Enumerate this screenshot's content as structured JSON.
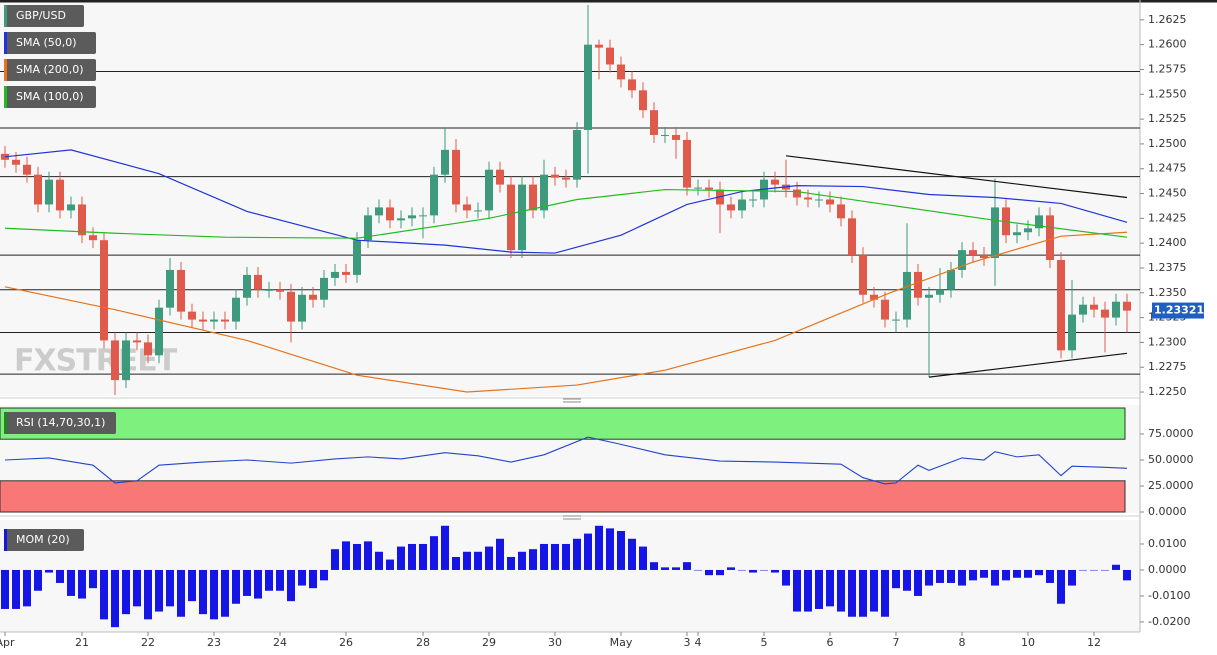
{
  "chart_data": [
    {
      "type": "candlestick",
      "name": "GBP/USD",
      "watermark": "FXSTREET",
      "up_color": "#3d9a7c",
      "down_color": "#e05a4b",
      "open": [
        1.249,
        1.2484,
        1.2479,
        1.2469,
        1.2439,
        1.2464,
        1.2433,
        1.2439,
        1.2408,
        1.2403,
        1.2302,
        1.2262,
        1.2302,
        1.23,
        1.2287,
        1.2335,
        1.2373,
        1.2331,
        1.2323,
        1.2321,
        1.2323,
        1.2321,
        1.2345,
        1.2368,
        1.2353,
        1.2353,
        1.2351,
        1.2321,
        1.2348,
        1.2343,
        1.2365,
        1.2371,
        1.2368,
        1.2403,
        1.2428,
        1.2436,
        1.2423,
        1.2425,
        1.2428,
        1.2428,
        1.2469,
        1.2494,
        1.2439,
        1.2433,
        1.2433,
        1.2474,
        1.2459,
        1.2393,
        1.2459,
        1.2433,
        1.2469,
        1.2466,
        1.2464,
        1.2514,
        1.26,
        1.2597,
        1.258,
        1.2565,
        1.2554,
        1.2534,
        1.2509,
        1.2509,
        1.2504,
        1.2456,
        1.2456,
        1.2454,
        1.2439,
        1.2433,
        1.2444,
        1.2444,
        1.2464,
        1.2459,
        1.2454,
        1.2446,
        1.2444,
        1.2444,
        1.2439,
        1.2425,
        1.2388,
        1.2348,
        1.2343,
        1.2323,
        1.2323,
        1.2371,
        1.2345,
        1.2348,
        1.2353,
        1.2373,
        1.2393,
        1.2388,
        1.2385,
        1.2436,
        1.2408,
        1.2411,
        1.2415,
        1.2428,
        1.2383,
        1.2292,
        1.2328,
        1.2338,
        1.2333,
        1.2325,
        1.2341
      ],
      "high": [
        1.2498,
        1.2492,
        1.2487,
        1.2477,
        1.2472,
        1.2472,
        1.2447,
        1.2447,
        1.2416,
        1.2411,
        1.231,
        1.231,
        1.231,
        1.2308,
        1.2343,
        1.2385,
        1.2381,
        1.2339,
        1.2331,
        1.2331,
        1.2331,
        1.2353,
        1.2376,
        1.2376,
        1.2361,
        1.2361,
        1.2359,
        1.2356,
        1.2356,
        1.2373,
        1.2379,
        1.2379,
        1.2411,
        1.2436,
        1.2444,
        1.2444,
        1.2433,
        1.2436,
        1.2436,
        1.2477,
        1.2517,
        1.2505,
        1.2447,
        1.2441,
        1.2482,
        1.2482,
        1.2467,
        1.2467,
        1.2467,
        1.2484,
        1.2477,
        1.2474,
        1.2522,
        1.264,
        1.2605,
        1.2605,
        1.2588,
        1.2573,
        1.2562,
        1.2542,
        1.2517,
        1.2517,
        1.2512,
        1.2464,
        1.2464,
        1.2462,
        1.2447,
        1.2452,
        1.2452,
        1.2472,
        1.2472,
        1.2484,
        1.2462,
        1.2454,
        1.2452,
        1.2452,
        1.2447,
        1.2433,
        1.2396,
        1.2356,
        1.2351,
        1.2331,
        1.242,
        1.2379,
        1.2356,
        1.2375,
        1.2381,
        1.2401,
        1.2401,
        1.2396,
        1.2465,
        1.2444,
        1.2419,
        1.2423,
        1.2436,
        1.2436,
        1.2391,
        1.2363,
        1.2346,
        1.2346,
        1.2341,
        1.2349,
        1.2349
      ],
      "low": [
        1.2476,
        1.2471,
        1.2461,
        1.2431,
        1.2431,
        1.2425,
        1.2425,
        1.24,
        1.2395,
        1.2294,
        1.2247,
        1.2254,
        1.2292,
        1.2279,
        1.2279,
        1.2327,
        1.2323,
        1.2315,
        1.2313,
        1.2313,
        1.2313,
        1.2313,
        1.2337,
        1.2345,
        1.2345,
        1.2343,
        1.23,
        1.2313,
        1.2335,
        1.2335,
        1.2357,
        1.236,
        1.236,
        1.2395,
        1.242,
        1.2415,
        1.2415,
        1.2417,
        1.2405,
        1.242,
        1.2461,
        1.2431,
        1.2425,
        1.2425,
        1.2425,
        1.2451,
        1.2385,
        1.2385,
        1.2425,
        1.2425,
        1.2458,
        1.2456,
        1.2456,
        1.247,
        1.2565,
        1.2572,
        1.2557,
        1.2546,
        1.2526,
        1.2501,
        1.2501,
        1.2485,
        1.2448,
        1.2448,
        1.2446,
        1.241,
        1.2425,
        1.2425,
        1.2436,
        1.2436,
        1.2451,
        1.2446,
        1.2438,
        1.2436,
        1.2436,
        1.2431,
        1.2417,
        1.238,
        1.234,
        1.2335,
        1.2315,
        1.231,
        1.2315,
        1.2337,
        1.2265,
        1.234,
        1.2345,
        1.2365,
        1.238,
        1.2377,
        1.2357,
        1.24,
        1.24,
        1.2403,
        1.2407,
        1.2375,
        1.2284,
        1.2284,
        1.232,
        1.2325,
        1.229,
        1.2317,
        1.231
      ],
      "close": [
        1.2484,
        1.2479,
        1.2469,
        1.2439,
        1.2464,
        1.2433,
        1.2439,
        1.2408,
        1.2403,
        1.2302,
        1.2262,
        1.2302,
        1.23,
        1.2287,
        1.2335,
        1.2373,
        1.2331,
        1.2323,
        1.2321,
        1.2323,
        1.2321,
        1.2345,
        1.2368,
        1.2353,
        1.2353,
        1.2351,
        1.2321,
        1.2348,
        1.2343,
        1.2365,
        1.2371,
        1.2368,
        1.2403,
        1.2428,
        1.2436,
        1.2423,
        1.2425,
        1.2428,
        1.2428,
        1.2469,
        1.2494,
        1.2439,
        1.2433,
        1.2433,
        1.2474,
        1.2459,
        1.2393,
        1.2459,
        1.2433,
        1.2469,
        1.2466,
        1.2464,
        1.2514,
        1.26,
        1.2597,
        1.258,
        1.2565,
        1.2554,
        1.2534,
        1.2509,
        1.2509,
        1.2504,
        1.2456,
        1.2456,
        1.2454,
        1.2439,
        1.2433,
        1.2444,
        1.2444,
        1.2464,
        1.2459,
        1.2454,
        1.2446,
        1.2444,
        1.2444,
        1.2439,
        1.2425,
        1.2388,
        1.2348,
        1.2343,
        1.2323,
        1.2323,
        1.2371,
        1.2345,
        1.2348,
        1.2353,
        1.2373,
        1.2393,
        1.2388,
        1.2385,
        1.2436,
        1.2408,
        1.2411,
        1.2415,
        1.2428,
        1.2383,
        1.2292,
        1.2328,
        1.2338,
        1.2333,
        1.2325,
        1.2341,
        1.2332
      ],
      "series": [
        {
          "name": "SMA (50,0)",
          "color": "#2233dd",
          "x": [
            0,
            6,
            14,
            22,
            32,
            40,
            46,
            50,
            56,
            62,
            67,
            72,
            78,
            84,
            90,
            96,
            102
          ],
          "values": [
            1.2487,
            1.2494,
            1.247,
            1.2432,
            1.2403,
            1.2398,
            1.2391,
            1.239,
            1.2408,
            1.2439,
            1.2452,
            1.2458,
            1.2457,
            1.2449,
            1.2446,
            1.244,
            1.2421
          ]
        },
        {
          "name": "SMA (200,0)",
          "color": "#e8731a",
          "x": [
            0,
            10,
            22,
            32,
            42,
            52,
            60,
            70,
            80,
            88,
            96,
            102
          ],
          "values": [
            1.2356,
            1.2333,
            1.2302,
            1.2267,
            1.225,
            1.2257,
            1.2272,
            1.2302,
            1.2348,
            1.2381,
            1.2407,
            1.2411
          ]
        },
        {
          "name": "SMA (100,0)",
          "color": "#22bb22",
          "x": [
            0,
            10,
            20,
            32,
            44,
            52,
            60,
            72,
            80,
            90,
            102
          ],
          "values": [
            1.2415,
            1.241,
            1.2406,
            1.2405,
            1.2425,
            1.2444,
            1.2454,
            1.2452,
            1.2439,
            1.2423,
            1.2406
          ]
        }
      ],
      "levels": [
        1.2573,
        1.2516,
        1.2467,
        1.2388,
        1.2353,
        1.231,
        1.2268
      ],
      "trendlines": [
        {
          "x": [
            71,
            102
          ],
          "values": [
            1.2488,
            1.2446
          ]
        },
        {
          "x": [
            84,
            102
          ],
          "values": [
            1.2265,
            1.2289
          ]
        }
      ],
      "last_price": 1.23321,
      "ylim": [
        1.2246,
        1.2645
      ],
      "yticks": [
        {
          "value": 1.225,
          "label": "1.2250"
        },
        1.2275,
        {
          "value": 1.23,
          "label": "1.2300"
        },
        1.2325,
        {
          "value": 1.235,
          "label": "1.2350"
        },
        1.2375,
        {
          "value": 1.24,
          "label": "1.2400"
        },
        1.2425,
        {
          "value": 1.245,
          "label": "1.2450"
        },
        1.2475,
        {
          "value": 1.25,
          "label": "1.2500"
        },
        1.2525,
        {
          "value": 1.255,
          "label": "1.2550"
        },
        1.2575,
        {
          "value": 1.26,
          "label": "1.2600"
        },
        1.2625
      ]
    },
    {
      "type": "line",
      "name": "RSI (14,70,30,1)",
      "color": "#2244cc",
      "overbought": 70,
      "oversold": 30,
      "overbought_color": "#7ef07e",
      "oversold_color": "#f87878",
      "x": [
        0,
        4,
        8,
        10,
        12,
        14,
        18,
        22,
        26,
        30,
        33,
        36,
        40,
        43,
        46,
        49,
        53,
        56,
        60,
        65,
        70,
        76,
        78,
        80,
        81,
        83,
        84,
        87,
        89,
        90,
        92,
        94,
        96,
        97,
        100,
        102
      ],
      "values": [
        50,
        52,
        45,
        28,
        30,
        45,
        48,
        50,
        47,
        51,
        53,
        51,
        57,
        54,
        48,
        55,
        72,
        65,
        55,
        49,
        48,
        46,
        33,
        27,
        28,
        45,
        40,
        52,
        50,
        58,
        53,
        55,
        35,
        44,
        43,
        42
      ],
      "ylim": [
        0,
        100
      ],
      "yticks": [
        {
          "value": 0,
          "label": "0.0000"
        },
        {
          "value": 25,
          "label": "25.0000"
        },
        {
          "value": 50,
          "label": "50.0000"
        },
        {
          "value": 75,
          "label": "75.0000"
        }
      ]
    },
    {
      "type": "bar",
      "name": "MOM (20)",
      "color": "#1515e6",
      "categories": [
        "Apr",
        null,
        null,
        null,
        null,
        null,
        null,
        "21",
        null,
        null,
        null,
        null,
        null,
        "22",
        null,
        null,
        null,
        null,
        null,
        "23",
        null,
        null,
        null,
        null,
        null,
        "24",
        null,
        null,
        null,
        null,
        null,
        "26",
        null,
        null,
        null,
        null,
        null,
        null,
        "28",
        null,
        null,
        null,
        null,
        null,
        "29",
        null,
        null,
        null,
        null,
        null,
        "30",
        null,
        null,
        null,
        null,
        null,
        "May",
        null,
        null,
        null,
        null,
        null,
        "3",
        "4",
        null,
        null,
        null,
        null,
        null,
        "5",
        null,
        null,
        null,
        null,
        null,
        "6",
        null,
        null,
        null,
        null,
        null,
        "7",
        null,
        null,
        null,
        null,
        null,
        "8",
        null,
        null,
        null,
        null,
        null,
        "10",
        null,
        null,
        null,
        null,
        null,
        "12",
        null,
        null,
        null
      ],
      "values": [
        -0.015,
        -0.015,
        -0.014,
        -0.008,
        -0.001,
        -0.005,
        -0.01,
        -0.011,
        -0.007,
        -0.019,
        -0.022,
        -0.017,
        -0.014,
        -0.019,
        -0.016,
        -0.014,
        -0.018,
        -0.012,
        -0.017,
        -0.019,
        -0.018,
        -0.013,
        -0.01,
        -0.011,
        -0.008,
        -0.008,
        -0.012,
        -0.006,
        -0.007,
        -0.004,
        0.008,
        0.011,
        0.01,
        0.011,
        0.007,
        0.004,
        0.009,
        0.01,
        0.01,
        0.013,
        0.017,
        0.005,
        0.007,
        0.007,
        0.009,
        0.012,
        0.005,
        0.007,
        0.008,
        0.01,
        0.01,
        0.01,
        0.012,
        0.014,
        0.017,
        0.016,
        0.015,
        0.012,
        0.009,
        0.003,
        0.001,
        0.001,
        0.003,
        0.0,
        -0.002,
        -0.002,
        0.001,
        0.0,
        -0.001,
        0.0,
        -0.001,
        -0.006,
        -0.016,
        -0.016,
        -0.015,
        -0.014,
        -0.016,
        -0.018,
        -0.018,
        -0.016,
        -0.018,
        -0.007,
        -0.008,
        -0.01,
        -0.006,
        -0.005,
        -0.005,
        -0.006,
        -0.004,
        -0.003,
        -0.006,
        -0.004,
        -0.003,
        -0.003,
        -0.002,
        -0.005,
        -0.013,
        -0.006,
        0.0,
        0.0,
        0.0,
        0.002,
        -0.004
      ],
      "ylim": [
        -0.0231,
        0.0173
      ],
      "yticks": [
        {
          "value": -0.02,
          "label": "-0.0200"
        },
        {
          "value": -0.01,
          "label": "-0.0100"
        },
        {
          "value": 0,
          "label": "0.0000"
        },
        {
          "value": 0.01,
          "label": "0.0100"
        }
      ]
    }
  ]
}
